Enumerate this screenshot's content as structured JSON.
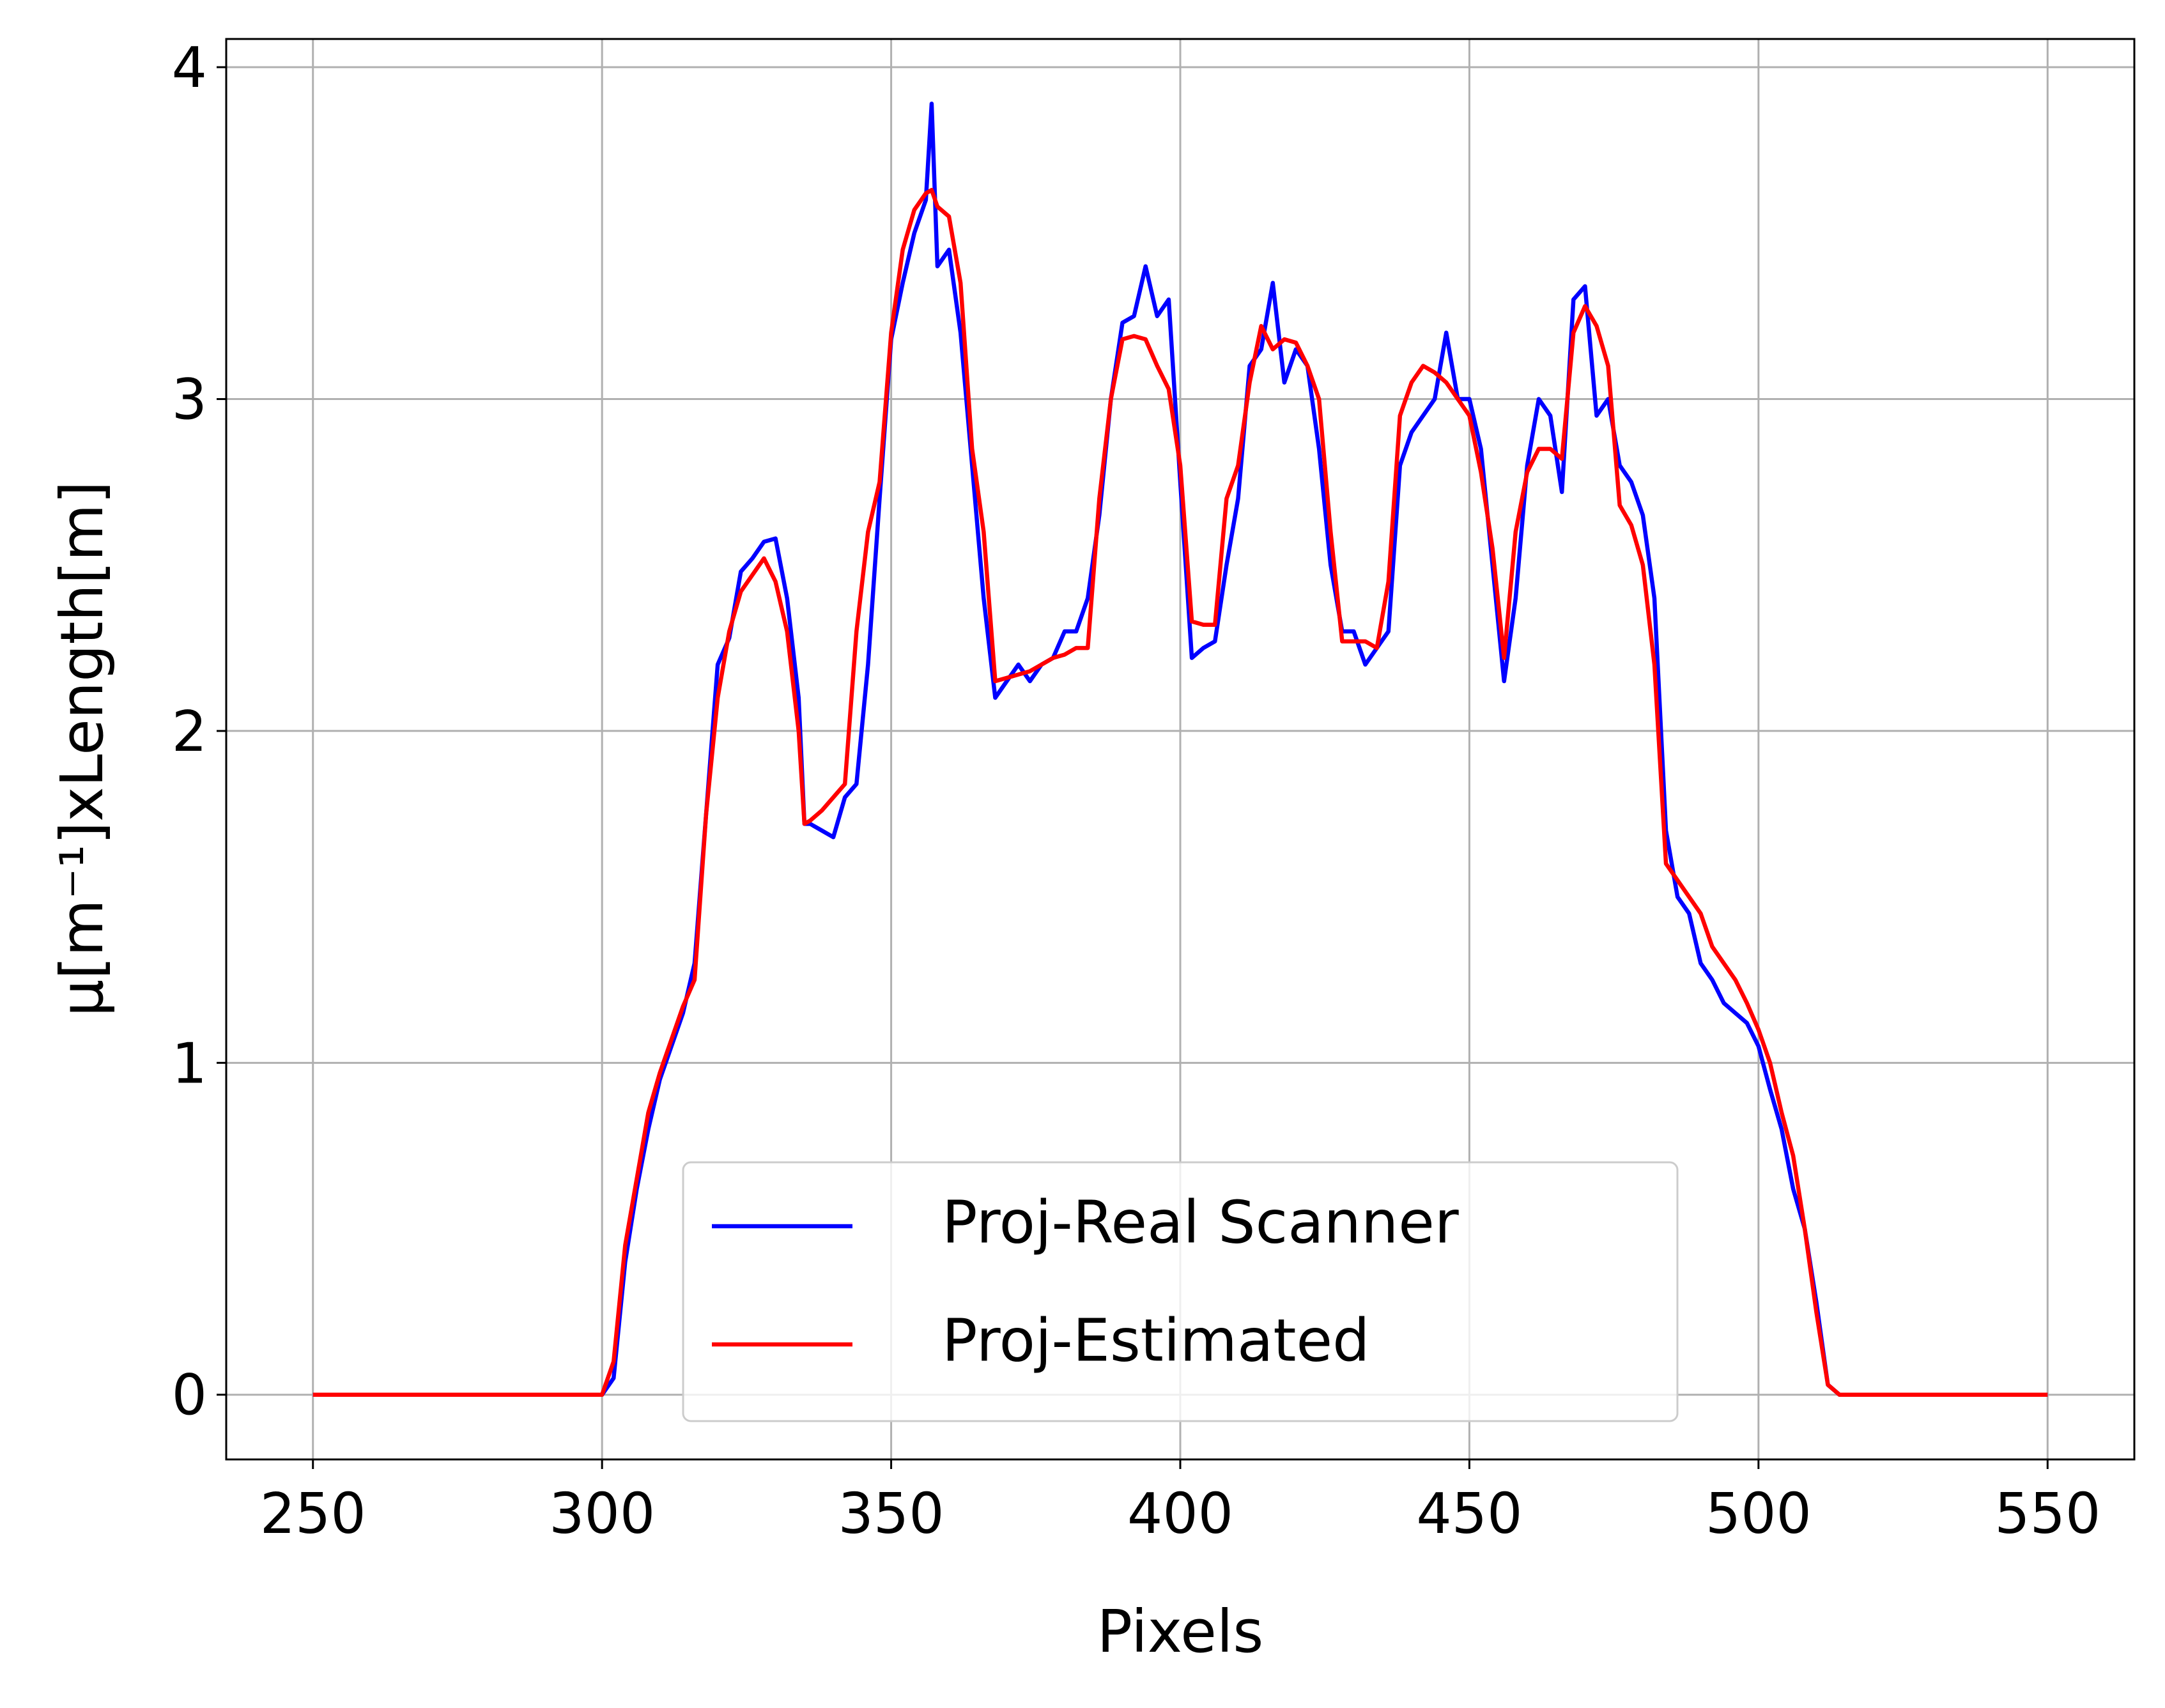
{
  "chart_data": {
    "type": "line",
    "x_label": "Pixels",
    "y_label": "μ[m⁻¹]xLength[m]",
    "x": [
      250,
      260,
      270,
      280,
      290,
      300,
      302,
      304,
      306,
      308,
      310,
      312,
      314,
      316,
      318,
      320,
      322,
      324,
      326,
      328,
      330,
      332,
      334,
      335,
      336,
      338,
      340,
      342,
      344,
      346,
      348,
      350,
      352,
      354,
      356,
      357,
      358,
      360,
      362,
      364,
      366,
      368,
      370,
      372,
      374,
      376,
      378,
      380,
      382,
      384,
      386,
      388,
      390,
      392,
      394,
      396,
      398,
      400,
      402,
      404,
      406,
      408,
      410,
      412,
      414,
      416,
      418,
      420,
      422,
      424,
      426,
      428,
      430,
      432,
      434,
      436,
      438,
      440,
      442,
      444,
      446,
      448,
      450,
      452,
      454,
      456,
      458,
      460,
      462,
      464,
      466,
      468,
      470,
      472,
      474,
      476,
      478,
      480,
      482,
      484,
      486,
      488,
      490,
      492,
      494,
      496,
      498,
      500,
      502,
      504,
      506,
      508,
      510,
      512,
      514,
      520,
      530,
      540,
      550
    ],
    "series": [
      {
        "name": "Proj-Real Scanner",
        "color": "#0000ff",
        "values": [
          0,
          0,
          0,
          0,
          0,
          0,
          0.05,
          0.4,
          0.62,
          0.8,
          0.95,
          1.05,
          1.15,
          1.3,
          1.75,
          2.2,
          2.28,
          2.48,
          2.52,
          2.57,
          2.58,
          2.4,
          2.1,
          1.72,
          1.72,
          1.7,
          1.68,
          1.8,
          1.84,
          2.2,
          2.7,
          3.18,
          3.35,
          3.5,
          3.6,
          3.89,
          3.4,
          3.45,
          3.2,
          2.8,
          2.4,
          2.1,
          2.15,
          2.2,
          2.15,
          2.2,
          2.22,
          2.3,
          2.3,
          2.4,
          2.65,
          3.0,
          3.23,
          3.25,
          3.4,
          3.25,
          3.3,
          2.75,
          2.22,
          2.25,
          2.27,
          2.5,
          2.7,
          3.1,
          3.15,
          3.35,
          3.05,
          3.15,
          3.1,
          2.85,
          2.5,
          2.3,
          2.3,
          2.2,
          2.25,
          2.3,
          2.8,
          2.9,
          2.95,
          3.0,
          3.2,
          3.0,
          3.0,
          2.85,
          2.5,
          2.15,
          2.4,
          2.8,
          3.0,
          2.95,
          2.72,
          3.3,
          3.34,
          2.95,
          3.0,
          2.8,
          2.75,
          2.65,
          2.4,
          1.7,
          1.5,
          1.45,
          1.3,
          1.25,
          1.18,
          1.15,
          1.12,
          1.05,
          0.92,
          0.8,
          0.62,
          0.5,
          0.28,
          0.03,
          0,
          0,
          0,
          0,
          0
        ]
      },
      {
        "name": "Proj-Estimated",
        "color": "#ff0000",
        "values": [
          0,
          0,
          0,
          0,
          0,
          0,
          0.1,
          0.45,
          0.65,
          0.85,
          0.97,
          1.07,
          1.17,
          1.25,
          1.75,
          2.1,
          2.3,
          2.42,
          2.47,
          2.52,
          2.45,
          2.3,
          2.0,
          1.72,
          1.73,
          1.76,
          1.8,
          1.84,
          2.3,
          2.6,
          2.75,
          3.2,
          3.45,
          3.57,
          3.62,
          3.63,
          3.58,
          3.55,
          3.35,
          2.85,
          2.6,
          2.15,
          2.16,
          2.17,
          2.18,
          2.2,
          2.22,
          2.23,
          2.25,
          2.25,
          2.7,
          3.0,
          3.18,
          3.19,
          3.18,
          3.1,
          3.03,
          2.8,
          2.33,
          2.32,
          2.32,
          2.7,
          2.8,
          3.05,
          3.22,
          3.15,
          3.18,
          3.17,
          3.1,
          3.0,
          2.6,
          2.27,
          2.27,
          2.27,
          2.25,
          2.45,
          2.95,
          3.05,
          3.1,
          3.08,
          3.05,
          3.0,
          2.95,
          2.78,
          2.55,
          2.22,
          2.6,
          2.78,
          2.85,
          2.85,
          2.82,
          3.2,
          3.28,
          3.22,
          3.1,
          2.68,
          2.62,
          2.5,
          2.2,
          1.6,
          1.55,
          1.5,
          1.45,
          1.35,
          1.3,
          1.25,
          1.18,
          1.1,
          1.0,
          0.85,
          0.72,
          0.5,
          0.25,
          0.03,
          0,
          0,
          0,
          0,
          0
        ]
      }
    ],
    "xlim": [
      235,
      565
    ],
    "ylim": [
      -0.195,
      4.085
    ],
    "xticks": [
      250,
      300,
      350,
      400,
      450,
      500,
      550
    ],
    "yticks": [
      0,
      1,
      2,
      3,
      4
    ],
    "grid": true,
    "legend": "lower center"
  }
}
